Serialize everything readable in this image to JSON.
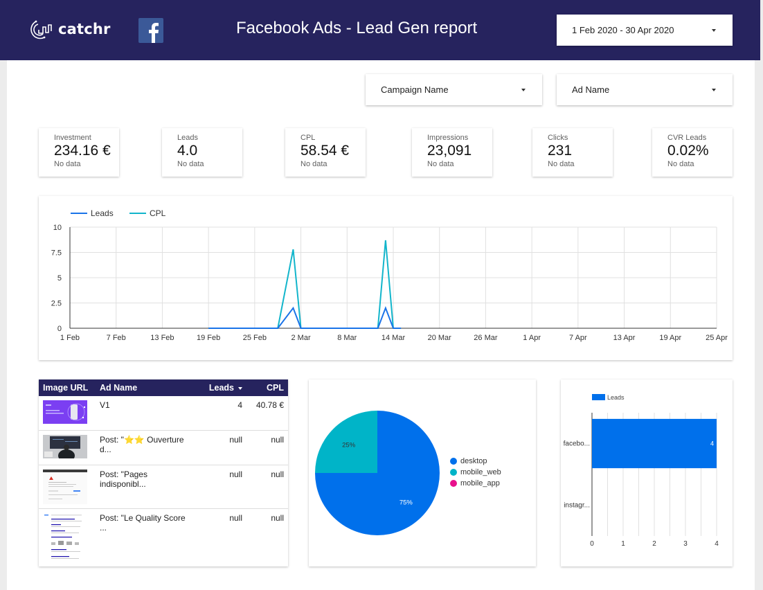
{
  "header": {
    "brand": "catchr",
    "source_icon": "facebook-icon",
    "title": "Facebook Ads - Lead Gen report",
    "date_range": "1 Feb 2020 - 30 Apr 2020"
  },
  "filters": [
    {
      "label": "Campaign Name"
    },
    {
      "label": "Ad Name"
    }
  ],
  "kpis": [
    {
      "label": "Investment",
      "value": "234.16 €",
      "sub": "No data"
    },
    {
      "label": "Leads",
      "value": "4.0",
      "sub": "No data"
    },
    {
      "label": "CPL",
      "value": "58.54 €",
      "sub": "No data"
    },
    {
      "label": "Impressions",
      "value": "23,091",
      "sub": "No data"
    },
    {
      "label": "Clicks",
      "value": "231",
      "sub": "No data"
    },
    {
      "label": "CVR Leads",
      "value": "0.02%",
      "sub": "No data"
    }
  ],
  "colors": {
    "header_bg": "#26235e",
    "leads": "#1a73e8",
    "cpl": "#12b5cb",
    "desktop": "#0070eb",
    "mobile_web": "#00b4c8",
    "mobile_app": "#e8108c"
  },
  "table": {
    "columns": [
      "Image URL",
      "Ad Name",
      "Leads",
      "CPL"
    ],
    "sort_column": "Leads",
    "rows": [
      {
        "image": "purple-ad-thumbnail",
        "ad_name": "V1",
        "leads": "4",
        "cpl": "40.78 €"
      },
      {
        "image": "office-screen-thumbnail",
        "ad_name": "Post: \"⭐⭐ Ouverture d...",
        "leads": "null",
        "cpl": "null"
      },
      {
        "image": "error-page-thumbnail",
        "ad_name": "Post: \"Pages indisponibl...",
        "leads": "null",
        "cpl": "null"
      },
      {
        "image": "search-results-thumbnail",
        "ad_name": "Post: \"Le Quality Score ...",
        "leads": "null",
        "cpl": "null"
      }
    ]
  },
  "chart_data": [
    {
      "type": "line",
      "title": "",
      "xlabel": "",
      "ylabel": "",
      "legend": "top-left",
      "grid": true,
      "ylim": [
        0,
        10
      ],
      "yticks": [
        "0",
        "2.5",
        "5",
        "7.5",
        "10"
      ],
      "xticks": [
        "1 Feb",
        "7 Feb",
        "13 Feb",
        "19 Feb",
        "25 Feb",
        "2 Mar",
        "8 Mar",
        "14 Mar",
        "20 Mar",
        "26 Mar",
        "1 Apr",
        "7 Apr",
        "13 Apr",
        "19 Apr",
        "25 Apr"
      ],
      "x_day_offsets_of_ticks": [
        0,
        6,
        12,
        18,
        24,
        30,
        36,
        42,
        48,
        54,
        60,
        66,
        72,
        78,
        84
      ],
      "series": [
        {
          "name": "Leads",
          "points": [
            {
              "date": "19 Feb",
              "day": 18,
              "value": 0
            },
            {
              "date": "28 Feb",
              "day": 27,
              "value": 0
            },
            {
              "date": "1 Mar",
              "day": 29,
              "value": 2
            },
            {
              "date": "2 Mar",
              "day": 30,
              "value": 0
            },
            {
              "date": "12 Mar",
              "day": 40,
              "value": 0
            },
            {
              "date": "13 Mar",
              "day": 41,
              "value": 2
            },
            {
              "date": "14 Mar",
              "day": 42,
              "value": 0
            },
            {
              "date": "15 Mar",
              "day": 43,
              "value": 0
            }
          ]
        },
        {
          "name": "CPL",
          "points": [
            {
              "date": "19 Feb",
              "day": 18,
              "value": 0
            },
            {
              "date": "28 Feb",
              "day": 27,
              "value": 0
            },
            {
              "date": "1 Mar",
              "day": 29,
              "value": 7.8
            },
            {
              "date": "2 Mar",
              "day": 30,
              "value": 0
            },
            {
              "date": "12 Mar",
              "day": 40,
              "value": 0
            },
            {
              "date": "13 Mar",
              "day": 41,
              "value": 8.7
            },
            {
              "date": "14 Mar",
              "day": 42,
              "value": 0
            },
            {
              "date": "15 Mar",
              "day": 43,
              "value": 0
            }
          ]
        }
      ]
    },
    {
      "type": "pie",
      "title": "",
      "legend": "right",
      "labels": [
        "desktop",
        "mobile_web",
        "mobile_app"
      ],
      "values": [
        75,
        25,
        0
      ],
      "data_labels": [
        "75%",
        "25%",
        ""
      ]
    },
    {
      "type": "bar",
      "orientation": "horizontal",
      "title": "",
      "legend": "top",
      "series": [
        {
          "name": "Leads",
          "values": [
            4,
            0
          ]
        }
      ],
      "categories": [
        "facebo...",
        "instagr..."
      ],
      "data_labels": [
        "4",
        ""
      ],
      "xlim": [
        0,
        4
      ],
      "xticks": [
        "0",
        "1",
        "2",
        "3",
        "4"
      ]
    }
  ]
}
